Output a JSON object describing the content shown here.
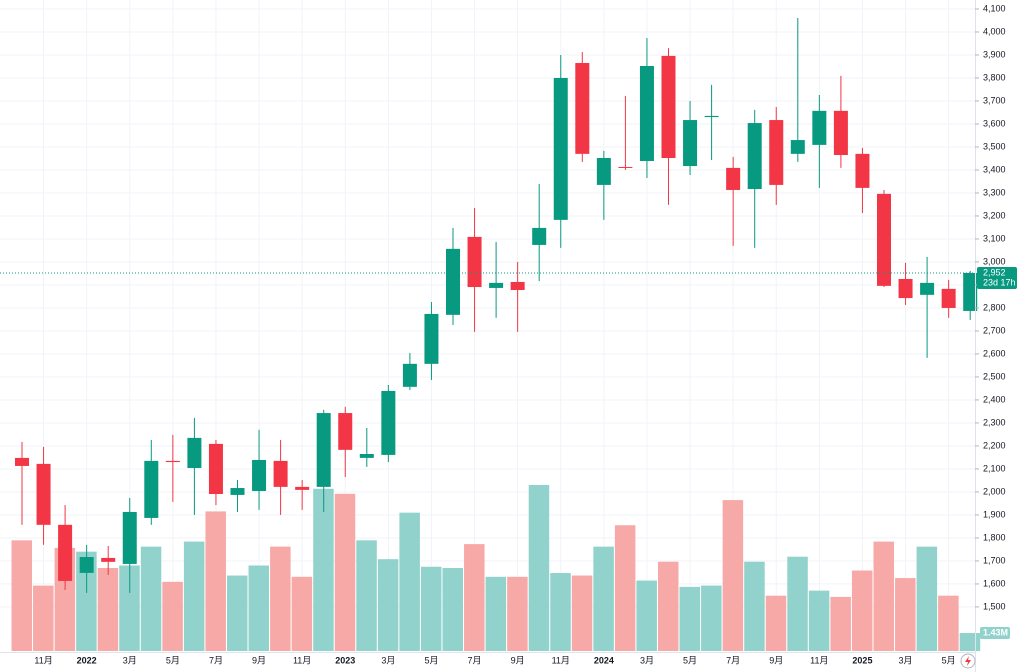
{
  "chart_data": {
    "type": "candlestick",
    "categories": [
      null,
      "11月",
      null,
      "2022",
      null,
      "3月",
      null,
      "5月",
      null,
      "7月",
      null,
      "9月",
      null,
      "11月",
      null,
      "2023",
      null,
      "3月",
      null,
      "5月",
      null,
      "7月",
      null,
      "9月",
      null,
      "11月",
      null,
      "2024",
      null,
      "3月",
      null,
      "5月",
      null,
      "7月",
      null,
      "9月",
      null,
      "11月",
      null,
      "2025",
      null,
      "3月",
      null,
      "5月",
      null
    ],
    "open": [
      2148,
      2122,
      1857,
      1648,
      1713,
      1687,
      1887,
      2135,
      2104,
      2209,
      1987,
      2004,
      2135,
      2022,
      2022,
      2343,
      2148,
      2161,
      2457,
      2557,
      2770,
      3109,
      2887,
      2913,
      3074,
      3183,
      3865,
      3335,
      3413,
      3439,
      3896,
      3417,
      3630,
      3409,
      3317,
      3617,
      3470,
      3509,
      3657,
      3470,
      3296,
      2926,
      2857,
      2883,
      2787
    ],
    "high": [
      2217,
      2196,
      1943,
      1770,
      1765,
      1974,
      2226,
      2248,
      2322,
      2226,
      2052,
      2270,
      2226,
      2052,
      2357,
      2370,
      2278,
      2465,
      2604,
      2826,
      3148,
      3235,
      3087,
      3000,
      3339,
      3900,
      3913,
      3483,
      3722,
      3974,
      3930,
      3700,
      3770,
      3457,
      3661,
      3674,
      4061,
      3726,
      3809,
      3496,
      3313,
      2996,
      3022,
      2922,
      2961
    ],
    "low": [
      1857,
      1770,
      1574,
      1561,
      1639,
      1561,
      1857,
      1957,
      1900,
      1943,
      1913,
      1922,
      1900,
      1922,
      1913,
      2065,
      2109,
      2130,
      2443,
      2487,
      2726,
      2696,
      2757,
      2696,
      2917,
      3061,
      3435,
      3183,
      3400,
      3365,
      3248,
      3378,
      3443,
      3070,
      3061,
      3248,
      3435,
      3322,
      3409,
      3213,
      2891,
      2813,
      2583,
      2757,
      2748
    ],
    "close": [
      2113,
      1857,
      1613,
      1717,
      1696,
      1913,
      2135,
      2130,
      2235,
      1991,
      2017,
      2139,
      2022,
      2009,
      2343,
      2183,
      2165,
      2439,
      2557,
      2774,
      3057,
      2891,
      2909,
      2878,
      3148,
      3800,
      3470,
      3452,
      3409,
      3852,
      3452,
      3617,
      3635,
      3313,
      3604,
      3335,
      3530,
      3657,
      3465,
      3322,
      2896,
      2843,
      2909,
      2800,
      2952
    ],
    "volume": [
      8.8,
      5.2,
      8.2,
      7.9,
      6.6,
      6.8,
      8.3,
      5.5,
      8.7,
      11.1,
      6.0,
      6.8,
      8.3,
      5.9,
      12.9,
      12.5,
      8.8,
      7.3,
      11.0,
      6.7,
      6.6,
      8.5,
      5.9,
      5.9,
      13.2,
      6.2,
      6.0,
      8.3,
      10.0,
      5.6,
      7.1,
      5.1,
      5.2,
      12.0,
      7.1,
      4.4,
      7.5,
      4.8,
      4.3,
      6.4,
      8.7,
      5.8,
      8.3,
      4.4,
      1.43
    ],
    "volume_label": "1.43M",
    "last_price_label": "2,952",
    "countdown": "23d 17h",
    "up_color": "#089981",
    "down_color": "#f23645",
    "volume_up_color": "#92d2cc",
    "volume_down_color": "#f7a9a7",
    "ylim": [
      1291,
      4139
    ],
    "yticks": [
      {
        "value": 1500,
        "label": "1,500"
      },
      {
        "value": 1600,
        "label": "1,600"
      },
      {
        "value": 1700,
        "label": "1,700"
      },
      {
        "value": 1800,
        "label": "1,800"
      },
      {
        "value": 1900,
        "label": "1,900"
      },
      {
        "value": 2000,
        "label": "2,000"
      },
      {
        "value": 2100,
        "label": "2,100"
      },
      {
        "value": 2200,
        "label": "2,200"
      },
      {
        "value": 2300,
        "label": "2,300"
      },
      {
        "value": 2400,
        "label": "2,400"
      },
      {
        "value": 2500,
        "label": "2,500"
      },
      {
        "value": 2600,
        "label": "2,600"
      },
      {
        "value": 2700,
        "label": "2,700"
      },
      {
        "value": 2800,
        "label": "2,800"
      },
      {
        "value": 2900,
        "label": "2,900"
      },
      {
        "value": 3000,
        "label": "3,000"
      },
      {
        "value": 3100,
        "label": "3,100"
      },
      {
        "value": 3200,
        "label": "3,200"
      },
      {
        "value": 3300,
        "label": "3,300"
      },
      {
        "value": 3400,
        "label": "3,400"
      },
      {
        "value": 3500,
        "label": "3,500"
      },
      {
        "value": 3600,
        "label": "3,600"
      },
      {
        "value": 3700,
        "label": "3,700"
      },
      {
        "value": 3800,
        "label": "3,800"
      },
      {
        "value": 3900,
        "label": "3,900"
      },
      {
        "value": 4000,
        "label": "4,000"
      },
      {
        "value": 4100,
        "label": "4,100"
      }
    ],
    "grid": true
  }
}
